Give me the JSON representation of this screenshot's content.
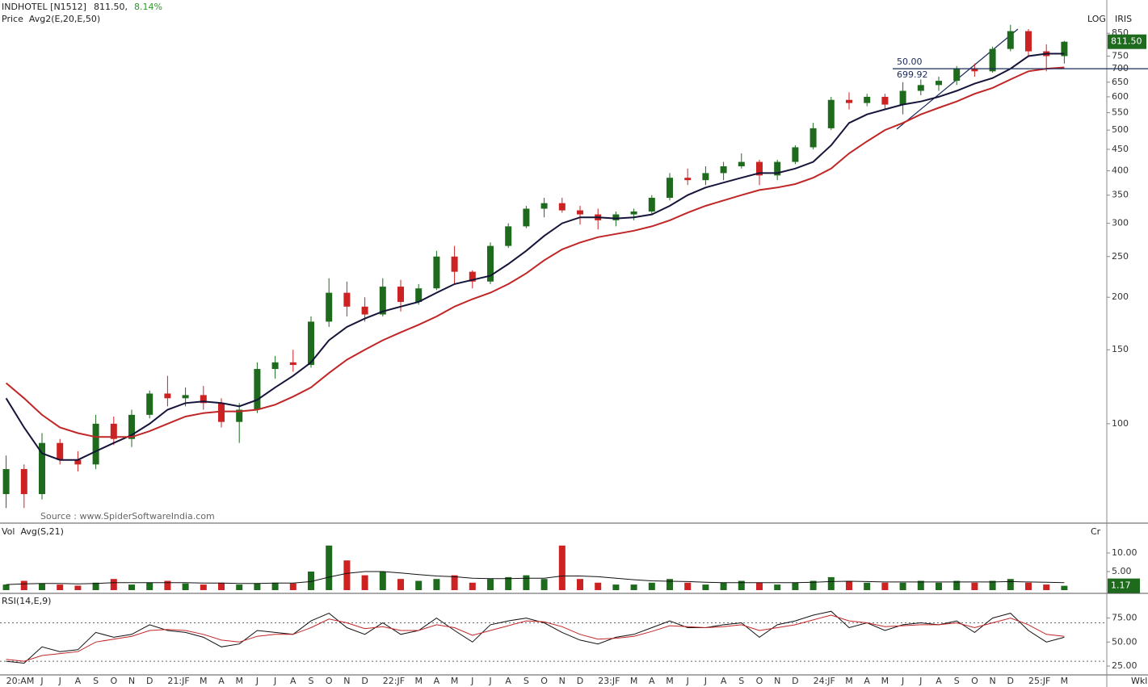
{
  "chart_data": [
    {
      "type": "candlestick",
      "title": "INDHOTEL [N1512]",
      "price_text": "811.50,",
      "change_text": "8.14%",
      "subtitle": "Price  Avg2(E,20,E,50)",
      "scale_text": "LOG",
      "tool_text": "IRIS",
      "source": "Source : www.SpiderSoftwareIndia.com",
      "log_scale": true,
      "ylim": [
        58,
        1020
      ],
      "yticks": [
        100,
        150,
        200,
        250,
        300,
        350,
        400,
        450,
        500,
        550,
        600,
        650,
        700,
        750,
        850
      ],
      "up_color": "#1e6b1e",
      "down_color": "#cc2222",
      "open": [
        68,
        78,
        68,
        90,
        82,
        80,
        100,
        92,
        105,
        118,
        115,
        117,
        112,
        101,
        108,
        135,
        140,
        138,
        175,
        205,
        190,
        182,
        212,
        195,
        210,
        250,
        230,
        218,
        265,
        295,
        325,
        335,
        322,
        315,
        305,
        315,
        320,
        345,
        385,
        380,
        395,
        410,
        420,
        390,
        420,
        455,
        505,
        590,
        580,
        600,
        575,
        620,
        640,
        655,
        700,
        690,
        780,
        860,
        770,
        750
      ],
      "high": [
        84,
        80,
        95,
        92,
        86,
        105,
        104,
        108,
        120,
        130,
        122,
        123,
        115,
        112,
        140,
        145,
        150,
        180,
        222,
        218,
        200,
        222,
        220,
        215,
        258,
        265,
        232,
        270,
        300,
        330,
        345,
        345,
        330,
        325,
        320,
        325,
        350,
        395,
        405,
        410,
        420,
        440,
        425,
        425,
        460,
        520,
        600,
        615,
        610,
        610,
        650,
        660,
        670,
        710,
        720,
        790,
        890,
        870,
        800,
        815
      ],
      "low": [
        63,
        63,
        66,
        80,
        77,
        78,
        89,
        88,
        103,
        110,
        110,
        108,
        98,
        90,
        106,
        128,
        133,
        136,
        170,
        180,
        175,
        180,
        185,
        192,
        208,
        215,
        210,
        215,
        262,
        292,
        310,
        318,
        298,
        290,
        295,
        305,
        315,
        340,
        370,
        370,
        380,
        405,
        370,
        380,
        415,
        450,
        500,
        560,
        570,
        560,
        545,
        605,
        620,
        640,
        670,
        685,
        770,
        750,
        690,
        720
      ],
      "close": [
        78,
        68,
        90,
        82,
        80,
        100,
        92,
        105,
        118,
        115,
        117,
        112,
        101,
        108,
        135,
        140,
        138,
        175,
        205,
        190,
        182,
        212,
        195,
        210,
        250,
        230,
        218,
        265,
        295,
        325,
        335,
        322,
        315,
        305,
        315,
        320,
        345,
        385,
        380,
        395,
        410,
        420,
        390,
        420,
        455,
        505,
        590,
        580,
        600,
        575,
        620,
        640,
        655,
        700,
        690,
        780,
        860,
        770,
        750,
        811.5
      ],
      "lines": [
        {
          "color": "#15153a",
          "values": [
            115,
            98,
            85,
            82,
            82,
            86,
            90,
            94,
            100,
            108,
            112,
            113,
            112,
            110,
            114,
            122,
            130,
            140,
            158,
            170,
            178,
            185,
            190,
            195,
            205,
            215,
            220,
            225,
            240,
            258,
            280,
            300,
            310,
            310,
            308,
            310,
            315,
            330,
            350,
            365,
            375,
            385,
            395,
            395,
            405,
            420,
            460,
            520,
            545,
            560,
            575,
            585,
            600,
            620,
            645,
            665,
            700,
            750,
            760,
            760
          ]
        },
        {
          "color": "#c02626",
          "values": [
            125,
            115,
            105,
            98,
            95,
            93,
            93,
            93,
            96,
            100,
            104,
            106,
            107,
            107,
            108,
            111,
            116,
            122,
            132,
            142,
            150,
            158,
            165,
            172,
            180,
            190,
            198,
            205,
            215,
            228,
            245,
            260,
            270,
            278,
            283,
            288,
            295,
            305,
            318,
            330,
            340,
            350,
            360,
            365,
            372,
            385,
            405,
            440,
            470,
            500,
            520,
            545,
            565,
            585,
            610,
            630,
            660,
            690,
            700,
            705
          ]
        }
      ],
      "hline": {
        "value": 699.92,
        "label": "699.92",
        "tag": "50.00",
        "color": "#1a2a5a"
      },
      "last_label": {
        "value": 811.5,
        "label": "811.50"
      }
    },
    {
      "type": "bar",
      "title": "Vol  Avg(S,21)",
      "unit": "Cr",
      "ylim": [
        0,
        17.6
      ],
      "yticks": [
        {
          "value": 5,
          "label": "5.00"
        },
        {
          "value": 10,
          "label": "10.00"
        }
      ],
      "values": [
        1.5,
        2.5,
        1.8,
        1.5,
        1.2,
        2,
        3,
        1.5,
        2,
        2.5,
        1.8,
        1.5,
        2,
        1.5,
        1.8,
        2,
        1.8,
        5,
        12,
        8,
        4,
        5,
        3,
        2.5,
        3,
        4,
        2,
        3,
        3.5,
        4,
        3,
        12,
        3,
        2,
        1.5,
        1.5,
        2,
        3,
        2,
        1.5,
        2,
        2.5,
        2,
        1.5,
        2,
        2.5,
        3.5,
        2.5,
        2,
        2,
        2,
        2.5,
        2,
        2.5,
        2,
        2.5,
        3,
        2,
        1.5,
        1.17
      ],
      "avg": [
        1.5,
        1.7,
        1.8,
        1.8,
        1.7,
        1.8,
        2,
        2,
        2,
        2,
        2,
        1.9,
        1.9,
        1.8,
        1.8,
        1.9,
        1.9,
        2.3,
        3.5,
        4.5,
        5,
        5,
        4.6,
        4.2,
        3.8,
        3.6,
        3.2,
        3.1,
        3.1,
        3.2,
        3.2,
        3.8,
        3.8,
        3.6,
        3.2,
        2.8,
        2.5,
        2.4,
        2.3,
        2.1,
        2,
        2,
        2,
        2,
        2,
        2.1,
        2.3,
        2.4,
        2.3,
        2.2,
        2.2,
        2.2,
        2.2,
        2.2,
        2.2,
        2.2,
        2.3,
        2.2,
        2.1,
        2
      ],
      "last_label": {
        "value": 1.17,
        "label": "1.17"
      }
    },
    {
      "type": "line",
      "title": "RSI(14,E,9)",
      "x_unit": "Wkl",
      "ylim": [
        17.5,
        99
      ],
      "yticks": [
        {
          "value": 25,
          "label": "25.00"
        },
        {
          "value": 50,
          "label": "50.00"
        },
        {
          "value": 75,
          "label": "75.00"
        }
      ],
      "levels": [
        30,
        70
      ],
      "categories": [
        "20:AM",
        null,
        "J",
        "J",
        "A",
        "S",
        "O",
        "N",
        "D",
        "21:JF",
        null,
        "M",
        "A",
        "M",
        "J",
        "J",
        "A",
        "S",
        "O",
        "N",
        "D",
        "22:JF",
        null,
        "M",
        "A",
        "M",
        "J",
        "J",
        "A",
        "S",
        "O",
        "N",
        "D",
        "23:JF",
        null,
        "M",
        "A",
        "M",
        "J",
        "J",
        "A",
        "S",
        "O",
        "N",
        "D",
        "24:JF",
        null,
        "M",
        "A",
        "M",
        "J",
        "J",
        "A",
        "S",
        "O",
        "N",
        "D",
        "25:JF",
        null,
        "M"
      ],
      "series": [
        {
          "color": "#111111",
          "values": [
            30,
            28,
            45,
            40,
            42,
            60,
            55,
            58,
            68,
            62,
            60,
            55,
            45,
            48,
            62,
            60,
            58,
            72,
            80,
            65,
            58,
            70,
            58,
            62,
            75,
            62,
            50,
            68,
            72,
            75,
            70,
            60,
            52,
            48,
            55,
            58,
            65,
            72,
            65,
            65,
            68,
            70,
            55,
            68,
            72,
            78,
            82,
            65,
            70,
            62,
            68,
            70,
            68,
            72,
            60,
            75,
            80,
            62,
            50,
            55
          ]
        },
        {
          "color": "#c02626",
          "values": [
            32,
            30,
            36,
            38,
            40,
            50,
            53,
            56,
            62,
            63,
            62,
            58,
            52,
            50,
            56,
            58,
            58,
            65,
            74,
            70,
            64,
            66,
            62,
            62,
            68,
            65,
            57,
            62,
            67,
            72,
            71,
            66,
            58,
            53,
            54,
            56,
            61,
            67,
            66,
            65,
            66,
            68,
            62,
            65,
            68,
            73,
            78,
            72,
            70,
            66,
            67,
            68,
            68,
            70,
            65,
            70,
            75,
            68,
            58,
            56
          ]
        }
      ]
    }
  ]
}
